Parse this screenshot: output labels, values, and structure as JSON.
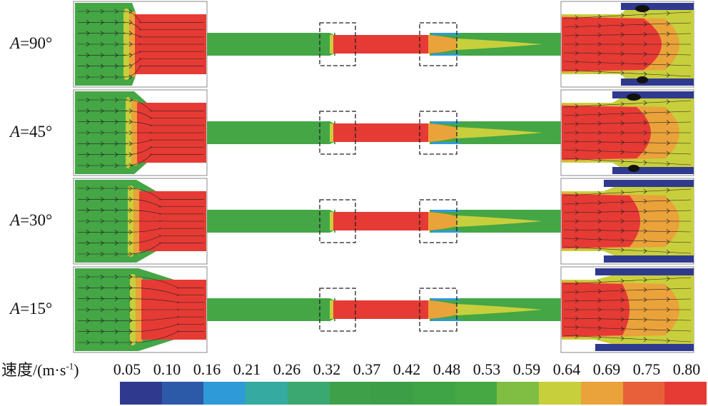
{
  "rows": [
    {
      "letter": "A",
      "value": "=90°",
      "key": "90"
    },
    {
      "letter": "A",
      "value": "=45°",
      "key": "45"
    },
    {
      "letter": "A",
      "value": "=30°",
      "key": "30"
    },
    {
      "letter": "A",
      "value": "=15°",
      "key": "15"
    }
  ],
  "legend": {
    "title_main": "速度/(m·s",
    "title_sup": "-1",
    "title_end": ")",
    "ticks": [
      "0.05",
      "0.10",
      "0.16",
      "0.21",
      "0.26",
      "0.32",
      "0.37",
      "0.42",
      "0.48",
      "0.53",
      "0.59",
      "0.64",
      "0.69",
      "0.75",
      "0.80"
    ],
    "colors": [
      "#2f3a8f",
      "#2c5aa8",
      "#2f9ad8",
      "#35aaa0",
      "#3aa870",
      "#3ea14a",
      "#3c9f48",
      "#3fa445",
      "#45a842",
      "#7fbe43",
      "#c8cf3c",
      "#eaa23a",
      "#e8603a",
      "#e63a34"
    ]
  }
}
